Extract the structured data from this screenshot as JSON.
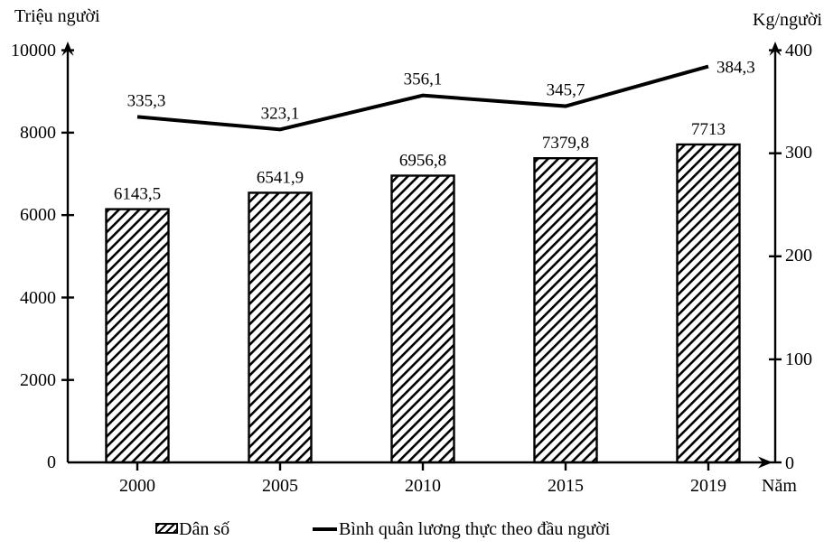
{
  "chart_data": {
    "type": "combo_bar_line",
    "categories": [
      "2000",
      "2005",
      "2010",
      "2015",
      "2019"
    ],
    "series": [
      {
        "name": "Dân số",
        "type": "bar",
        "axis": "left",
        "values": [
          6143.5,
          6541.9,
          6956.8,
          7379.8,
          7713
        ],
        "labels": [
          "6143,5",
          "6541,9",
          "6956,8",
          "7379,8",
          "7713"
        ]
      },
      {
        "name": "Bình quân lương thực theo đầu người",
        "type": "line",
        "axis": "right",
        "values": [
          335.3,
          323.1,
          356.1,
          345.7,
          384.3
        ],
        "labels": [
          "335,3",
          "323,1",
          "356,1",
          "345,7",
          "384,3"
        ]
      }
    ],
    "left_axis": {
      "title": "Triệu người",
      "min": 0,
      "max": 10000,
      "ticks": [
        "10000",
        "8000",
        "6000",
        "4000",
        "2000",
        "0"
      ],
      "tick_values": [
        10000,
        8000,
        6000,
        4000,
        2000,
        0
      ]
    },
    "right_axis": {
      "title": "Kg/người",
      "min": 0,
      "max": 400,
      "ticks": [
        "400",
        "300",
        "200",
        "100",
        "0"
      ],
      "tick_values": [
        400,
        300,
        200,
        100,
        0
      ]
    },
    "x_axis": {
      "title": "Năm"
    },
    "legend": [
      {
        "label": "Dân số",
        "swatch": "hatched-bar"
      },
      {
        "label": "Bình quân lương thực theo đầu người",
        "swatch": "line"
      }
    ],
    "colors": {
      "ink": "#000000",
      "background": "#ffffff"
    },
    "layout_hints": {
      "grid": false,
      "legend_position": "bottom",
      "bar_fill": "diagonal-hatch"
    }
  }
}
